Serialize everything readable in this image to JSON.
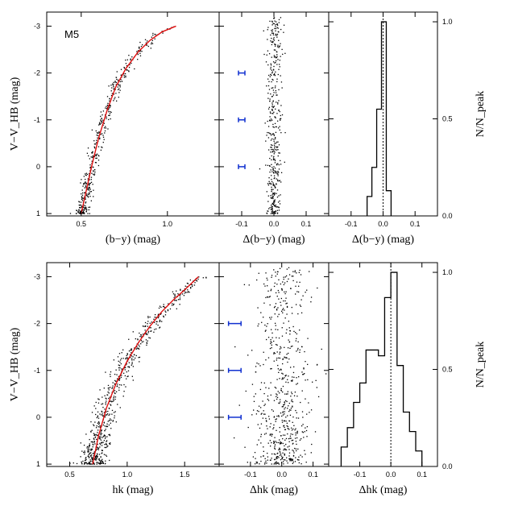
{
  "figure": {
    "annotation": "M5",
    "colors": {
      "fit_line": "#e01010",
      "error_bar": "#1030d0",
      "points": "#000000",
      "frame": "#000000"
    }
  },
  "chart_data": [
    {
      "id": "cmd-by",
      "type": "scatter",
      "xlabel": "(b−y) (mag)",
      "ylabel": "V−V_HB (mag)",
      "xlim": [
        0.3,
        1.3
      ],
      "ylim": [
        1.05,
        -3.3
      ],
      "y_inverted": true,
      "xticks": [
        0.5,
        1.0
      ],
      "yticks": [
        1,
        0,
        -1,
        -2,
        -3
      ],
      "ytick_labels": [
        "1",
        "0",
        "-1",
        "-2",
        "-3"
      ],
      "fit_line": {
        "x": [
          0.5,
          0.53,
          0.56,
          0.6,
          0.65,
          0.7,
          0.76,
          0.83,
          0.9,
          0.97,
          1.05
        ],
        "y": [
          1.0,
          0.5,
          0.0,
          -0.6,
          -1.2,
          -1.7,
          -2.1,
          -2.45,
          -2.7,
          -2.88,
          -3.0
        ]
      },
      "points_summary": "dense stars along the red giant branch from y=1 to y=-3"
    },
    {
      "id": "resid-by",
      "type": "scatter",
      "xlabel": "Δ(b−y) (mag)",
      "xlim": [
        -0.17,
        0.17
      ],
      "ylim": [
        1.05,
        -3.3
      ],
      "xticks": [
        -0.1,
        0.0,
        0.1
      ],
      "xtick_labels": [
        "-0.1",
        "0.0",
        "0.1"
      ],
      "error_bars": [
        {
          "y": 0,
          "err": 0.01,
          "x": -0.1
        },
        {
          "y": -1,
          "err": 0.01,
          "x": -0.1
        },
        {
          "y": -2,
          "err": 0.01,
          "x": -0.1
        }
      ]
    },
    {
      "id": "hist-by",
      "type": "histogram",
      "xlabel": "Δ(b−y) (mag)",
      "ylabel": "N/N_peak",
      "xlim": [
        -0.17,
        0.17
      ],
      "ylim": [
        0,
        1.05
      ],
      "xticks": [
        -0.1,
        0.0,
        0.1
      ],
      "xtick_labels": [
        "-0.1",
        "0.0",
        "0.1"
      ],
      "yticks": [
        0,
        0.5,
        1.0
      ],
      "ytick_labels": [
        "0.0",
        "0.5",
        "1.0"
      ],
      "bin_edges": [
        -0.05,
        -0.035,
        -0.02,
        -0.005,
        0.01,
        0.025
      ],
      "counts": [
        0.1,
        0.25,
        0.55,
        1.0,
        0.13
      ],
      "zero_line": 0.0
    },
    {
      "id": "cmd-hk",
      "type": "scatter",
      "xlabel": "hk (mag)",
      "ylabel": "V−V_HB (mag)",
      "xlim": [
        0.3,
        1.8
      ],
      "ylim": [
        1.05,
        -3.3
      ],
      "y_inverted": true,
      "xticks": [
        0.5,
        1.0,
        1.5
      ],
      "xtick_labels": [
        "0.5",
        "1.0",
        "1.5"
      ],
      "yticks": [
        1,
        0,
        -1,
        -2,
        -3
      ],
      "ytick_labels": [
        "1",
        "0",
        "-1",
        "-2",
        "-3"
      ],
      "fit_line": {
        "x": [
          0.7,
          0.75,
          0.82,
          0.9,
          1.0,
          1.1,
          1.2,
          1.3,
          1.4,
          1.5,
          1.62
        ],
        "y": [
          1.0,
          0.4,
          -0.2,
          -0.7,
          -1.2,
          -1.6,
          -1.95,
          -2.25,
          -2.5,
          -2.72,
          -3.0
        ]
      }
    },
    {
      "id": "resid-hk",
      "type": "scatter",
      "xlabel": "Δhk (mag)",
      "xlim": [
        -0.2,
        0.15
      ],
      "ylim": [
        1.05,
        -3.3
      ],
      "xticks": [
        -0.1,
        0.0,
        0.1
      ],
      "xtick_labels": [
        "-0.1",
        "0.0",
        "0.1"
      ],
      "error_bars": [
        {
          "y": 0,
          "err": 0.02,
          "x": -0.15
        },
        {
          "y": -1,
          "err": 0.02,
          "x": -0.15
        },
        {
          "y": -2,
          "err": 0.02,
          "x": -0.15
        }
      ]
    },
    {
      "id": "hist-hk",
      "type": "histogram",
      "xlabel": "Δhk (mag)",
      "ylabel": "N/N_peak",
      "xlim": [
        -0.2,
        0.15
      ],
      "ylim": [
        0,
        1.05
      ],
      "xticks": [
        -0.1,
        0.0,
        0.1
      ],
      "xtick_labels": [
        "-0.1",
        "0.0",
        "0.1"
      ],
      "yticks": [
        0,
        0.5,
        1.0
      ],
      "ytick_labels": [
        "0.0",
        "0.5",
        "1.0"
      ],
      "bin_edges": [
        -0.16,
        -0.14,
        -0.12,
        -0.1,
        -0.08,
        -0.06,
        -0.04,
        -0.02,
        0.0,
        0.02,
        0.04,
        0.06,
        0.08,
        0.1
      ],
      "counts": [
        0.1,
        0.2,
        0.33,
        0.43,
        0.6,
        0.6,
        0.57,
        0.87,
        1.0,
        0.52,
        0.28,
        0.18,
        0.08
      ],
      "zero_line": 0.0
    }
  ]
}
